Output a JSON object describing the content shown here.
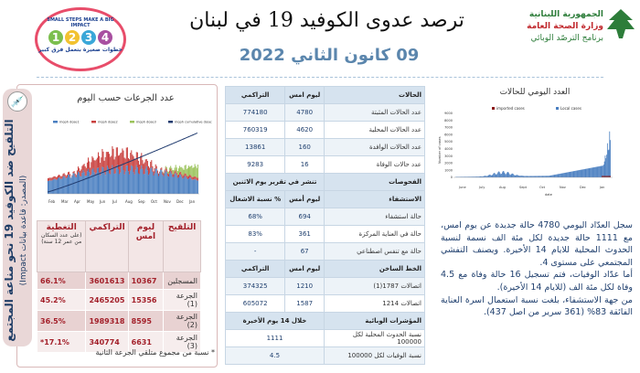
{
  "header": {
    "title": "ترصد عدوى الكوفيد 19 في لبنان",
    "date": "09 كانون الثاني 2022",
    "ministry": [
      "الجمهورية اللبنانية",
      "وزارة الصحة العامة",
      "برنامج الترصّد الوبائي"
    ],
    "campaign": {
      "en": "SMALL STEPS MAKE A BIG IMPACT",
      "ar": "خطوات صغيرة بتعمل فرق كبير",
      "numbers": [
        "1",
        "2",
        "3",
        "4"
      ]
    }
  },
  "vaccination": {
    "side_title": "التلقيح ضد الكوفيد 19 نحو مناعة المجتمع",
    "side_source": "(المصدر: قاعدة بيانات Impact)",
    "chart_title": "عدد الجرعات حسب اليوم",
    "legend": [
      "moph dose1",
      "moph dose2",
      "moph dose3",
      "moph cumulative dose1"
    ],
    "months": [
      "Feb",
      "Mar",
      "Apr",
      "May",
      "Jun",
      "Jul",
      "Aug",
      "Sep",
      "Oct",
      "Nov",
      "Dec",
      "Jan"
    ],
    "colors": {
      "dose1": "#4a7fc1",
      "dose2": "#c9403e",
      "dose3": "#9bc35a",
      "cumulative": "#1f3a6e"
    },
    "headers": {
      "type": "التلقيح",
      "yesterday": "ليوم امس",
      "cumulative": "التراكمي",
      "coverage": "التغطية",
      "coverage_note": "(على عدد السكان من عمر 12 سنة)"
    },
    "rows": [
      {
        "label": "المسجلين",
        "yesterday": "10367",
        "cumulative": "3601613",
        "coverage": "66.1%"
      },
      {
        "label": "الجرعة (1)",
        "yesterday": "15356",
        "cumulative": "2465205",
        "coverage": "45.2%"
      },
      {
        "label": "الجرعة (2)",
        "yesterday": "8595",
        "cumulative": "1989318",
        "coverage": "36.5%"
      },
      {
        "label": "الجرعة (3)",
        "yesterday": "6631",
        "cumulative": "340774",
        "coverage": "17.1%*"
      }
    ],
    "footnote": "* نسبة من مجموع متلقي الجرعة الثانية"
  },
  "cases": {
    "headers": [
      "الحالات",
      "ليوم امس",
      "التراكمي"
    ],
    "rows": [
      [
        "عدد الحالات المثبتة",
        "4780",
        "774180"
      ],
      [
        "عدد الحالات المحلية",
        "4620",
        "760319"
      ],
      [
        "عدد الحالات الوافدة",
        "160",
        "13861"
      ],
      [
        "عدد حالات الوفاة",
        "16",
        "9283"
      ]
    ]
  },
  "tests": {
    "label": "الفحوصات",
    "note": "تنشر في تقرير يوم الاثنين"
  },
  "hospital": {
    "headers": [
      "الاستشفاء",
      "ليوم أمس",
      "% نسبة الاشغال"
    ],
    "rows": [
      [
        "حالة استشفاء",
        "694",
        "68%"
      ],
      [
        "حالة في العناية المركزة",
        "361",
        "83%"
      ],
      [
        "حالة مع تنفس اصطناعي",
        "67",
        "-"
      ]
    ]
  },
  "hotline": {
    "headers": [
      "الخط الساخن",
      "ليوم امس",
      "التراكمي"
    ],
    "rows": [
      [
        "اتصالات 1787(1)",
        "1210",
        "374325"
      ],
      [
        "اتصالات 1214",
        "1587",
        "605072"
      ]
    ]
  },
  "indicators": {
    "headers": [
      "المؤشرات الوبائية",
      "خلال 14 يوم الأخيرة"
    ],
    "rows": [
      [
        "نسبة الحدوث المحلية لكل 100000",
        "1111"
      ],
      [
        "نسبة الوفيات لكل 100000",
        "4.5"
      ]
    ]
  },
  "daily_chart": {
    "title": "العدد اليومي للحالات",
    "legend": [
      "imported cases",
      "Local cases"
    ],
    "ylabel": "Number of cases",
    "xlabel": "date",
    "yticks": [
      "9000",
      "8000",
      "7000",
      "6000",
      "5000",
      "4000",
      "3000",
      "2000",
      "1000",
      "0"
    ],
    "months": [
      "June",
      "July",
      "Aug",
      "Sept",
      "Oct",
      "Nov",
      "Dec",
      "Jan"
    ],
    "colors": {
      "imported": "#8b1a1a",
      "local": "#4a7fc1"
    }
  },
  "summary": {
    "p1": "سجل العدّاد اليومي 4780 حالة جديدة عن يوم امس، مع 1111 حالة جديدة لكل مئة الف نسمة لنسبة الحدوث المحلية للايام 14 الأخيرة. ويصنف التفشي المجتمعي على مستوى 4.",
    "p2": "أما عدّاد الوفيات، فتم تسجيل 16 حالة وفاة مع 4.5 وفاة لكل مئة الف (للايام 14 الأخيرة).",
    "p3": "من جهة الاستشفاء، بلغت نسبة استعمال اسرة العناية الفائقة 83% (361 سرير من اصل 437)."
  }
}
